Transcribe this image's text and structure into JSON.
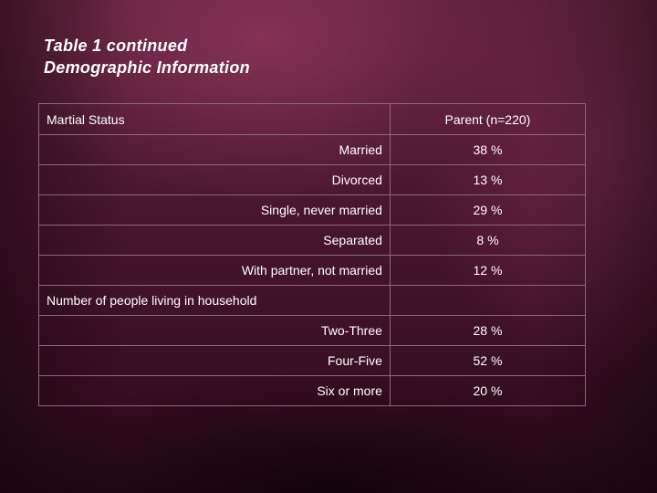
{
  "title": {
    "line1": "Table 1 continued",
    "line2": "Demographic Information"
  },
  "table": {
    "header_left": "Martial Status",
    "header_right": "Parent (n=220)",
    "marital_rows": [
      {
        "label": "Married",
        "value": "38 %"
      },
      {
        "label": "Divorced",
        "value": "13 %"
      },
      {
        "label": "Single, never married",
        "value": "29 %"
      },
      {
        "label": "Separated",
        "value": "8 %"
      },
      {
        "label": "With partner, not married",
        "value": "12 %"
      }
    ],
    "household_header": "Number of people living in household",
    "household_rows": [
      {
        "label": "Two-Three",
        "value": "28 %"
      },
      {
        "label": "Four-Five",
        "value": "52 %"
      },
      {
        "label": "Six or more",
        "value": "20 %"
      }
    ]
  }
}
